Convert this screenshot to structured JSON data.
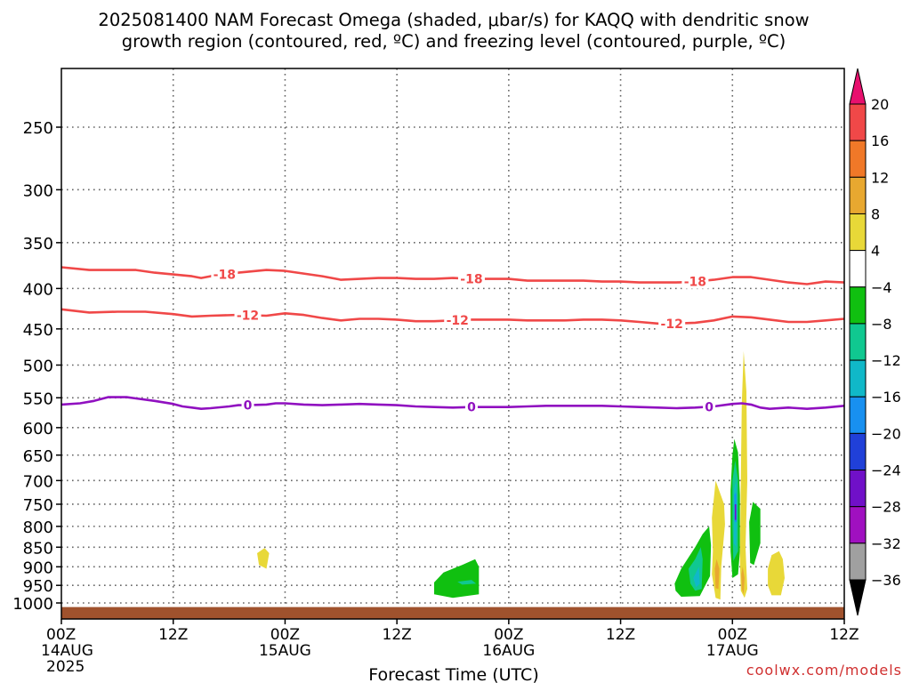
{
  "title_line1": "2025081400 NAM Forecast Omega (shaded, μbar/s) for KAQQ with dendritic snow",
  "title_line2": "growth region (contoured, red, ºC) and freezing level (contoured, purple, ºC)",
  "watermark": "coolwx.com/models",
  "chart_data": {
    "type": "contour",
    "xlabel": "Forecast Time (UTC)",
    "ylabel": "",
    "xlim": [
      0,
      84
    ],
    "ylim": [
      1030,
      200
    ],
    "y_scale": "pressure",
    "grid": true,
    "x_ticks": [
      {
        "h": 0,
        "l1": "00Z",
        "l2": "14AUG",
        "l3": "2025"
      },
      {
        "h": 12,
        "l1": "12Z",
        "l2": "",
        "l3": ""
      },
      {
        "h": 24,
        "l1": "00Z",
        "l2": "15AUG",
        "l3": ""
      },
      {
        "h": 36,
        "l1": "12Z",
        "l2": "",
        "l3": ""
      },
      {
        "h": 48,
        "l1": "00Z",
        "l2": "16AUG",
        "l3": ""
      },
      {
        "h": 60,
        "l1": "12Z",
        "l2": "",
        "l3": ""
      },
      {
        "h": 72,
        "l1": "00Z",
        "l2": "17AUG",
        "l3": ""
      },
      {
        "h": 84,
        "l1": "12Z",
        "l2": "",
        "l3": ""
      }
    ],
    "y_ticks": [
      250,
      300,
      350,
      400,
      450,
      500,
      550,
      600,
      650,
      700,
      750,
      800,
      850,
      900,
      950,
      1000
    ],
    "surface_pressure": 1012,
    "colorbar": {
      "labels": [
        "20",
        "16",
        "12",
        "8",
        "4",
        "−4",
        "−8",
        "−12",
        "−16",
        "−20",
        "−24",
        "−28",
        "−32",
        "−36"
      ],
      "colors": [
        "#e8106e",
        "#f04848",
        "#f07828",
        "#e8a830",
        "#e8d838",
        "#ffffff",
        "#10c010",
        "#10c890",
        "#10b8c8",
        "#1890f0",
        "#2040d8",
        "#7010c8",
        "#a010c0",
        "#a0a0a0",
        "#000000"
      ]
    },
    "series": [
      {
        "name": "-18",
        "color": "#f04848",
        "labels": [
          {
            "h": 17.5,
            "text": "-18"
          },
          {
            "h": 44,
            "text": "-18"
          },
          {
            "h": 68,
            "text": "-18"
          }
        ],
        "points": [
          [
            0,
            376
          ],
          [
            3,
            379
          ],
          [
            6,
            379
          ],
          [
            8,
            379
          ],
          [
            10,
            382
          ],
          [
            12,
            384
          ],
          [
            14,
            386
          ],
          [
            15,
            388
          ],
          [
            16,
            386
          ],
          [
            19,
            382
          ],
          [
            22,
            379
          ],
          [
            24,
            380
          ],
          [
            26,
            383
          ],
          [
            28,
            386
          ],
          [
            30,
            390
          ],
          [
            32,
            389
          ],
          [
            34,
            388
          ],
          [
            36,
            388
          ],
          [
            38,
            389
          ],
          [
            40,
            389
          ],
          [
            42,
            388
          ],
          [
            44,
            389
          ],
          [
            46,
            389
          ],
          [
            48,
            389
          ],
          [
            50,
            391
          ],
          [
            52,
            391
          ],
          [
            54,
            391
          ],
          [
            56,
            391
          ],
          [
            58,
            392
          ],
          [
            60,
            392
          ],
          [
            62,
            393
          ],
          [
            64,
            393
          ],
          [
            66,
            393
          ],
          [
            68,
            392
          ],
          [
            70,
            390
          ],
          [
            72,
            387
          ],
          [
            74,
            387
          ],
          [
            76,
            390
          ],
          [
            78,
            393
          ],
          [
            80,
            395
          ],
          [
            82,
            392
          ],
          [
            84,
            393
          ]
        ]
      },
      {
        "name": "-12",
        "color": "#f04848",
        "labels": [
          {
            "h": 20,
            "text": "-12"
          },
          {
            "h": 42.5,
            "text": "-12"
          },
          {
            "h": 65.5,
            "text": "-12"
          }
        ],
        "points": [
          [
            0,
            425
          ],
          [
            3,
            429
          ],
          [
            6,
            428
          ],
          [
            9,
            428
          ],
          [
            12,
            431
          ],
          [
            14,
            434
          ],
          [
            16,
            433
          ],
          [
            19,
            432
          ],
          [
            22,
            433
          ],
          [
            24,
            430
          ],
          [
            26,
            432
          ],
          [
            28,
            436
          ],
          [
            30,
            439
          ],
          [
            32,
            437
          ],
          [
            34,
            437
          ],
          [
            36,
            438
          ],
          [
            38,
            440
          ],
          [
            40,
            440
          ],
          [
            42,
            439
          ],
          [
            44,
            438
          ],
          [
            46,
            438
          ],
          [
            48,
            438
          ],
          [
            50,
            439
          ],
          [
            52,
            439
          ],
          [
            54,
            439
          ],
          [
            56,
            438
          ],
          [
            58,
            438
          ],
          [
            60,
            439
          ],
          [
            62,
            441
          ],
          [
            64,
            443
          ],
          [
            66,
            443
          ],
          [
            68,
            442
          ],
          [
            70,
            439
          ],
          [
            72,
            434
          ],
          [
            74,
            435
          ],
          [
            76,
            438
          ],
          [
            78,
            441
          ],
          [
            80,
            441
          ],
          [
            82,
            439
          ],
          [
            84,
            437
          ]
        ]
      },
      {
        "name": "0",
        "color": "#9010c0",
        "labels": [
          {
            "h": 20,
            "text": "0"
          },
          {
            "h": 44,
            "text": "0"
          },
          {
            "h": 69.5,
            "text": "0"
          }
        ],
        "points": [
          [
            0,
            561
          ],
          [
            2,
            559
          ],
          [
            3.5,
            555
          ],
          [
            4.5,
            551
          ],
          [
            5,
            549
          ],
          [
            6,
            549
          ],
          [
            7,
            549
          ],
          [
            8,
            551
          ],
          [
            10,
            555
          ],
          [
            12,
            560
          ],
          [
            13,
            564
          ],
          [
            14,
            566
          ],
          [
            15,
            568
          ],
          [
            16,
            567
          ],
          [
            18,
            564
          ],
          [
            19,
            562
          ],
          [
            20,
            562
          ],
          [
            22,
            561
          ],
          [
            23,
            559
          ],
          [
            24,
            559
          ],
          [
            26,
            561
          ],
          [
            28,
            562
          ],
          [
            30,
            561
          ],
          [
            32,
            560
          ],
          [
            34,
            561
          ],
          [
            36,
            562
          ],
          [
            38,
            564
          ],
          [
            40,
            565
          ],
          [
            42,
            566
          ],
          [
            44,
            565
          ],
          [
            46,
            565
          ],
          [
            48,
            565
          ],
          [
            50,
            564
          ],
          [
            52,
            563
          ],
          [
            54,
            563
          ],
          [
            56,
            563
          ],
          [
            58,
            563
          ],
          [
            60,
            564
          ],
          [
            62,
            565
          ],
          [
            64,
            566
          ],
          [
            66,
            567
          ],
          [
            68,
            566
          ],
          [
            70,
            564
          ],
          [
            72,
            560
          ],
          [
            73,
            559
          ],
          [
            74,
            561
          ],
          [
            75,
            566
          ],
          [
            76,
            568
          ],
          [
            78,
            566
          ],
          [
            80,
            568
          ],
          [
            82,
            566
          ],
          [
            84,
            563
          ]
        ]
      }
    ],
    "shaded_regions": [
      {
        "color": "#e8d838",
        "points": [
          [
            21,
            865
          ],
          [
            21.8,
            852
          ],
          [
            22.3,
            865
          ],
          [
            22,
            905
          ],
          [
            21.2,
            895
          ]
        ]
      },
      {
        "color": "#10c010",
        "points": [
          [
            40,
            942
          ],
          [
            41,
            915
          ],
          [
            43,
            895
          ],
          [
            44.4,
            880
          ],
          [
            44.8,
            900
          ],
          [
            44.8,
            975
          ],
          [
            42,
            985
          ],
          [
            40,
            975
          ]
        ]
      },
      {
        "color": "#10c890",
        "points": [
          [
            42.5,
            940
          ],
          [
            44,
            935
          ],
          [
            44.5,
            945
          ],
          [
            43,
            948
          ]
        ]
      },
      {
        "color": "#10c010",
        "points": [
          [
            65.8,
            945
          ],
          [
            66.5,
            905
          ],
          [
            68,
            850
          ],
          [
            68.8,
            818
          ],
          [
            69.5,
            800
          ],
          [
            69.7,
            845
          ],
          [
            69.6,
            925
          ],
          [
            68.5,
            980
          ],
          [
            66.5,
            982
          ],
          [
            65.9,
            965
          ]
        ]
      },
      {
        "color": "#10c890",
        "points": [
          [
            67.3,
            905
          ],
          [
            68,
            880
          ],
          [
            68.6,
            850
          ],
          [
            68.8,
            880
          ],
          [
            68.7,
            960
          ],
          [
            68,
            965
          ],
          [
            67.5,
            945
          ]
        ]
      },
      {
        "color": "#10b8c8",
        "points": [
          [
            67.8,
            930
          ],
          [
            68.4,
            900
          ],
          [
            68.5,
            945
          ],
          [
            68.1,
            955
          ]
        ]
      },
      {
        "color": "#e8d838",
        "points": [
          [
            69.8,
            780
          ],
          [
            70.2,
            700
          ],
          [
            71.1,
            750
          ],
          [
            71.2,
            795
          ],
          [
            70.8,
            900
          ],
          [
            70.7,
            990
          ],
          [
            70.2,
            985
          ],
          [
            69.8,
            920
          ],
          [
            69.9,
            860
          ]
        ]
      },
      {
        "color": "#e8a830",
        "points": [
          [
            70.1,
            905
          ],
          [
            70.3,
            880
          ],
          [
            70.6,
            905
          ],
          [
            70.5,
            960
          ],
          [
            70.2,
            958
          ]
        ]
      },
      {
        "color": "#10c010",
        "points": [
          [
            71.8,
            720
          ],
          [
            72,
            650
          ],
          [
            72.2,
            620
          ],
          [
            72.6,
            645
          ],
          [
            72.8,
            730
          ],
          [
            72.8,
            860
          ],
          [
            72.6,
            920
          ],
          [
            72,
            930
          ],
          [
            71.8,
            860
          ]
        ]
      },
      {
        "color": "#10c890",
        "points": [
          [
            72,
            700
          ],
          [
            72.3,
            660
          ],
          [
            72.6,
            700
          ],
          [
            72.6,
            860
          ],
          [
            72.1,
            885
          ],
          [
            72,
            800
          ]
        ]
      },
      {
        "color": "#10b8c8",
        "points": [
          [
            72.15,
            720
          ],
          [
            72.4,
            700
          ],
          [
            72.5,
            760
          ],
          [
            72.4,
            850
          ],
          [
            72.15,
            840
          ]
        ]
      },
      {
        "color": "#1890f0",
        "points": [
          [
            72.2,
            730
          ],
          [
            72.4,
            725
          ],
          [
            72.45,
            790
          ],
          [
            72.25,
            790
          ]
        ]
      },
      {
        "color": "#7010c8",
        "points": [
          [
            72.25,
            750
          ],
          [
            72.4,
            750
          ],
          [
            72.4,
            785
          ],
          [
            72.25,
            785
          ]
        ]
      },
      {
        "color": "#e8d838",
        "points": [
          [
            73,
            560
          ],
          [
            73.2,
            480
          ],
          [
            73.5,
            540
          ],
          [
            73.6,
            700
          ],
          [
            73.4,
            850
          ],
          [
            73.6,
            960
          ],
          [
            73.3,
            985
          ],
          [
            72.9,
            965
          ],
          [
            72.8,
            880
          ],
          [
            72.9,
            700
          ]
        ]
      },
      {
        "color": "#e8a830",
        "points": [
          [
            72.95,
            920
          ],
          [
            73.1,
            900
          ],
          [
            73.3,
            930
          ],
          [
            73.2,
            975
          ],
          [
            73,
            960
          ]
        ]
      },
      {
        "color": "#10c010",
        "points": [
          [
            73.8,
            790
          ],
          [
            74.2,
            745
          ],
          [
            75,
            760
          ],
          [
            75,
            840
          ],
          [
            74.3,
            895
          ],
          [
            73.9,
            890
          ]
        ]
      },
      {
        "color": "#e8d838",
        "points": [
          [
            75.8,
            905
          ],
          [
            76.2,
            870
          ],
          [
            77,
            860
          ],
          [
            77.4,
            880
          ],
          [
            77.6,
            930
          ],
          [
            77.2,
            978
          ],
          [
            76.2,
            978
          ],
          [
            75.8,
            950
          ]
        ]
      }
    ]
  }
}
